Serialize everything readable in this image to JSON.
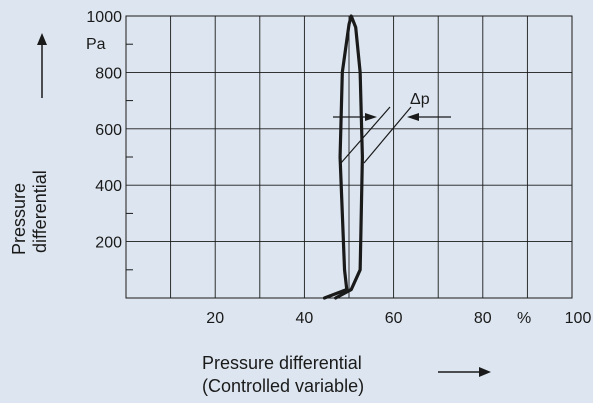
{
  "chart_data": {
    "type": "line",
    "title": "",
    "xlabel": "Pressure differential",
    "xlabel_line2": "(Controlled variable)",
    "ylabel": "Pressure",
    "ylabel_line2": "differential",
    "x_unit": "%",
    "y_unit": "Pa",
    "xlim": [
      0,
      100
    ],
    "ylim": [
      0,
      1000
    ],
    "x_ticks": [
      20,
      40,
      60,
      80,
      100
    ],
    "y_ticks": [
      200,
      400,
      600,
      800,
      1000
    ],
    "x_tick_labels": [
      "20",
      "40",
      "60",
      "80",
      "100"
    ],
    "y_tick_labels": [
      "200",
      "400",
      "600",
      "800",
      "1000"
    ],
    "grid": true,
    "annotation": "Δp",
    "series": [
      {
        "values": [
          {
            "x": 44.5,
            "y": 0
          },
          {
            "x": 49.5,
            "y": 30
          },
          {
            "x": 49.0,
            "y": 100
          },
          {
            "x": 48.0,
            "y": 500
          },
          {
            "x": 48.5,
            "y": 800
          },
          {
            "x": 50.0,
            "y": 970
          },
          {
            "x": 50.5,
            "y": 1000
          },
          {
            "x": 51.5,
            "y": 960
          },
          {
            "x": 52.5,
            "y": 800
          },
          {
            "x": 53.0,
            "y": 500
          },
          {
            "x": 52.5,
            "y": 100
          },
          {
            "x": 50.5,
            "y": 30
          },
          {
            "x": 47.0,
            "y": 0
          }
        ]
      }
    ]
  }
}
